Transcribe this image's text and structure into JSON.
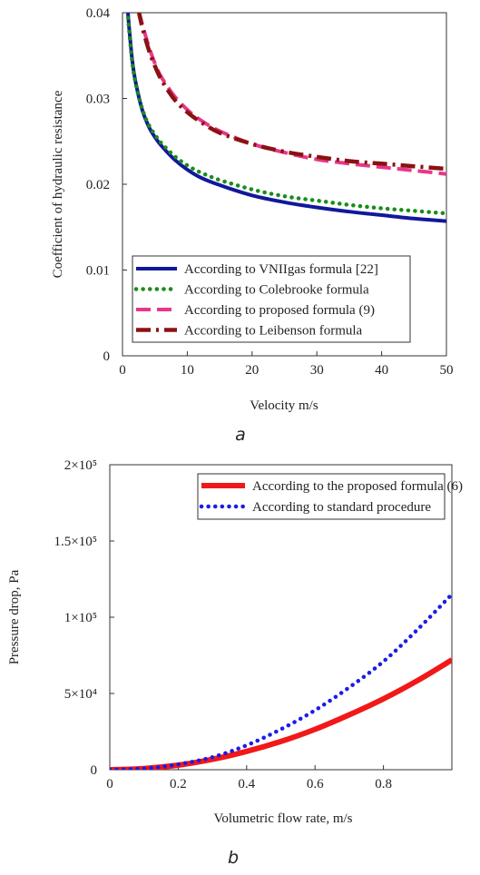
{
  "chart_data": [
    {
      "type": "line",
      "panel_label": "a",
      "xlabel": "Velocity m/s",
      "ylabel": "Coefficient of hydraulic resistance",
      "xlim": [
        0,
        50
      ],
      "ylim": [
        0,
        0.04
      ],
      "x_ticks": [
        "0",
        "10",
        "20",
        "30",
        "40",
        "50"
      ],
      "y_ticks": [
        "0",
        "0.01",
        "0.02",
        "0.03",
        "0.04"
      ],
      "grid": false,
      "legend_position": "bottom",
      "series": [
        {
          "name": "According to VNIIgas formula [22]",
          "color": "#10189a",
          "style": "solid",
          "x": [
            0.8,
            1,
            1.5,
            2,
            3,
            4,
            5,
            6,
            8,
            10,
            12,
            15,
            20,
            25,
            30,
            35,
            40,
            45,
            50
          ],
          "y": [
            0.0405,
            0.0385,
            0.0345,
            0.032,
            0.0288,
            0.0268,
            0.0255,
            0.0245,
            0.0229,
            0.0217,
            0.0208,
            0.0199,
            0.0187,
            0.0179,
            0.0173,
            0.0168,
            0.0164,
            0.016,
            0.0157
          ]
        },
        {
          "name": "According to Colebrooke formula",
          "color": "#1a8c1a",
          "style": "dotted",
          "x": [
            0.8,
            1,
            1.5,
            2,
            3,
            4,
            5,
            6,
            8,
            10,
            12,
            15,
            20,
            25,
            30,
            35,
            40,
            45,
            50
          ],
          "y": [
            0.0402,
            0.0382,
            0.0343,
            0.0319,
            0.0289,
            0.027,
            0.0258,
            0.0248,
            0.0233,
            0.0222,
            0.0214,
            0.0205,
            0.0194,
            0.0186,
            0.0181,
            0.0176,
            0.0172,
            0.0169,
            0.0166
          ]
        },
        {
          "name": "According to proposed formula (9)",
          "color": "#e8378a",
          "style": "dashed",
          "x": [
            2.5,
            3,
            4,
            5,
            6,
            8,
            10,
            12,
            15,
            20,
            25,
            30,
            35,
            40,
            45,
            50
          ],
          "y": [
            0.0403,
            0.0388,
            0.0362,
            0.0341,
            0.0325,
            0.0303,
            0.0287,
            0.0275,
            0.0262,
            0.0247,
            0.0237,
            0.0229,
            0.0224,
            0.022,
            0.0216,
            0.0212
          ]
        },
        {
          "name": "According to Leibenson formula",
          "color": "#8b1212",
          "style": "dashdot",
          "x": [
            2.5,
            3,
            4,
            5,
            6,
            8,
            10,
            12,
            15,
            20,
            25,
            30,
            35,
            40,
            45,
            50
          ],
          "y": [
            0.0402,
            0.0385,
            0.0358,
            0.0338,
            0.0322,
            0.0299,
            0.0284,
            0.0273,
            0.026,
            0.0247,
            0.0238,
            0.0232,
            0.0227,
            0.0224,
            0.0221,
            0.0218
          ]
        }
      ]
    },
    {
      "type": "line",
      "panel_label": "b",
      "xlabel": "Volumetric flow rate, m/s",
      "ylabel": "Pressure drop, Pa",
      "xlim": [
        0,
        1
      ],
      "ylim": [
        0,
        200000
      ],
      "x_ticks": [
        "0",
        "0.2",
        "0.4",
        "0.6",
        "0.8"
      ],
      "y_ticks": [
        "0",
        "5×10⁴",
        "1×10⁵",
        "1.5×10⁵",
        "2×10⁵"
      ],
      "grid": false,
      "legend_position": "top-right",
      "series": [
        {
          "name": "According to the proposed formula (6)",
          "color": "#f21818",
          "style": "solid",
          "x": [
            0,
            0.1,
            0.2,
            0.3,
            0.4,
            0.5,
            0.6,
            0.7,
            0.8,
            0.9,
            1.0
          ],
          "y": [
            0,
            800,
            3000,
            6800,
            12000,
            18500,
            26500,
            36000,
            46500,
            58500,
            72000
          ]
        },
        {
          "name": "According to standard procedure",
          "color": "#1c1ce8",
          "style": "dotted",
          "x": [
            0,
            0.1,
            0.2,
            0.3,
            0.4,
            0.5,
            0.6,
            0.7,
            0.8,
            0.9,
            1.0
          ],
          "y": [
            0,
            800,
            3500,
            8200,
            16000,
            26500,
            39000,
            54000,
            71000,
            92000,
            115000
          ]
        }
      ]
    }
  ]
}
